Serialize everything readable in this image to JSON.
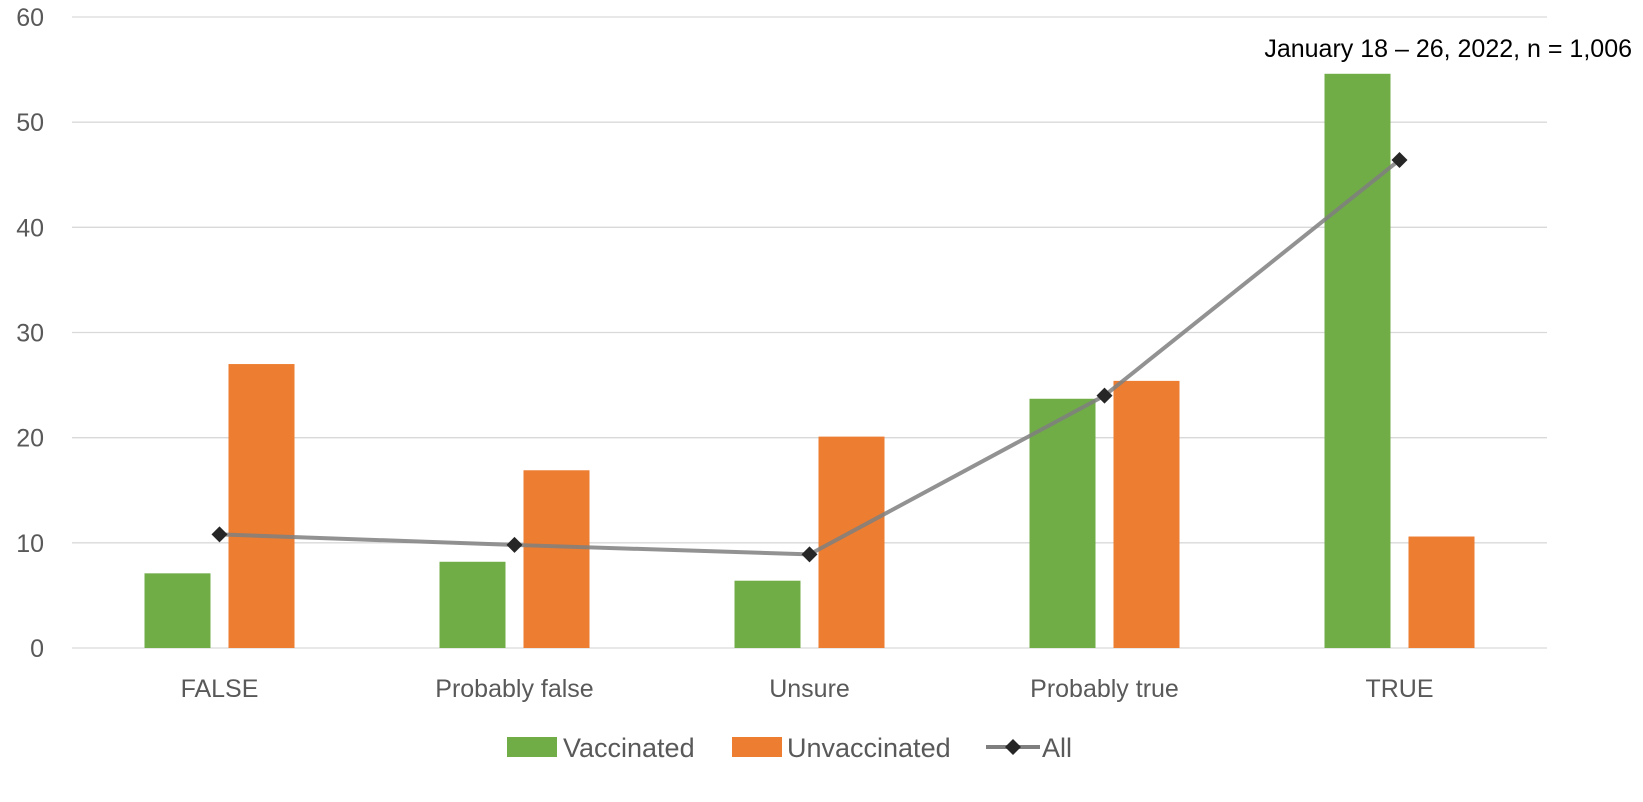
{
  "chart_data": {
    "type": "bar",
    "title": "",
    "xlabel": "",
    "ylabel": "",
    "ylim": [
      0,
      60
    ],
    "yticks": [
      0,
      10,
      20,
      30,
      40,
      50,
      60
    ],
    "grid": true,
    "legend_position": "bottom",
    "categories": [
      "FALSE",
      "Probably false",
      "Unsure",
      "Probably true",
      "TRUE"
    ],
    "series": [
      {
        "name": "Vaccinated",
        "kind": "bar",
        "color": "#70ad47",
        "values": [
          7.1,
          8.2,
          6.4,
          23.7,
          54.6
        ]
      },
      {
        "name": "Unvaccinated",
        "kind": "bar",
        "color": "#ed7d31",
        "values": [
          27.0,
          16.9,
          20.1,
          25.4,
          10.6
        ]
      },
      {
        "name": "All",
        "kind": "line",
        "color": "#7f7f7f",
        "marker": "diamond",
        "marker_color": "#262626",
        "values": [
          10.8,
          9.8,
          8.9,
          24.0,
          46.4
        ]
      }
    ],
    "annotation": "January 18 – 26, 2022, n = 1,006"
  }
}
